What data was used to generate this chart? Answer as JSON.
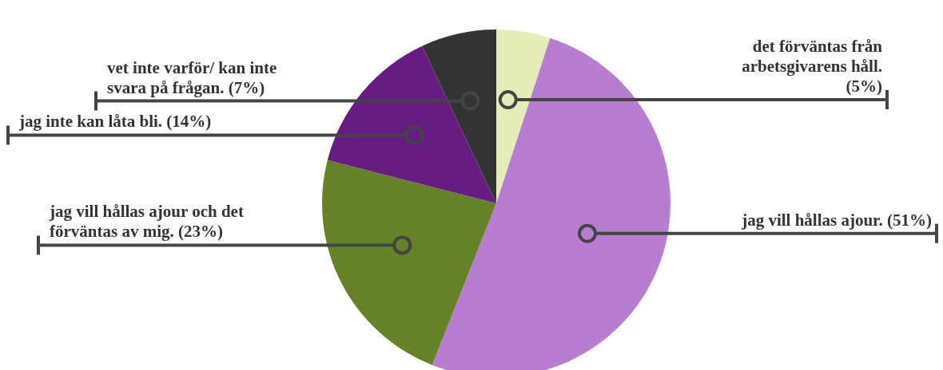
{
  "chart_data": {
    "type": "pie",
    "categories": [
      "det förväntas från arbetsgivarens håll.",
      "jag vill hållas ajour.",
      "jag vill hållas ajour och det förväntas av mig.",
      "jag inte kan låta bli.",
      "vet inte varför/ kan inte svara på frågan."
    ],
    "values": [
      5,
      51,
      23,
      14,
      7
    ],
    "value_labels": [
      "(5%)",
      "(51%)",
      "(23%)",
      "(14%)",
      "(7%)"
    ],
    "colors": [
      "#e6ecb8",
      "#b77dd0",
      "#668228",
      "#671c84",
      "#333333"
    ],
    "legend": false
  }
}
